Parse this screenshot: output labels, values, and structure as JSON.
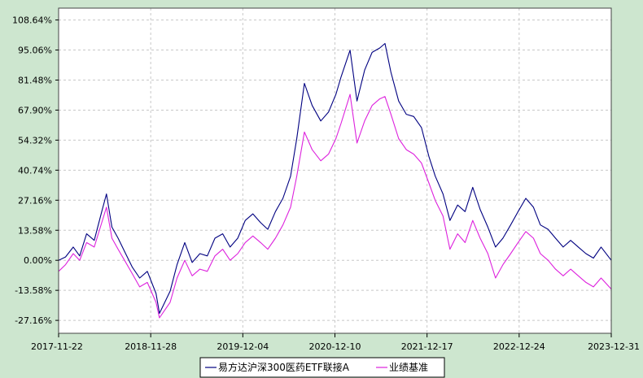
{
  "colors": {
    "page_background": "#cde6cf",
    "plot_background": "#ffffff",
    "grid": "#c8c8c8",
    "fund_line": "#000080",
    "benchmark_line": "#dd22dd"
  },
  "chart_data": {
    "type": "line",
    "title": "",
    "xlabel": "",
    "ylabel": "",
    "ylim": [
      -33.0,
      114.0
    ],
    "y_ticks": [
      108.64,
      95.06,
      81.48,
      67.9,
      54.32,
      40.74,
      27.16,
      13.58,
      0.0,
      -13.58,
      -27.16
    ],
    "y_tick_labels": [
      "108.64%",
      "95.06%",
      "81.48%",
      "67.90%",
      "54.32%",
      "40.74%",
      "27.16%",
      "13.58%",
      "0.00%",
      "-13.58%",
      "-27.16%"
    ],
    "x_tick_labels": [
      "2017-11-22",
      "2018-11-28",
      "2019-12-04",
      "2020-12-10",
      "2021-12-17",
      "2022-12-24",
      "2023-12-31"
    ],
    "x_range": [
      "2017-11-22",
      "2023-12-31"
    ],
    "grid": true,
    "legend_position": "bottom-center",
    "x": [
      "2017-11-22",
      "2017-12-20",
      "2018-01-20",
      "2018-02-15",
      "2018-03-15",
      "2018-04-15",
      "2018-05-15",
      "2018-06-03",
      "2018-06-25",
      "2018-07-20",
      "2018-08-15",
      "2018-09-15",
      "2018-10-15",
      "2018-11-15",
      "2018-12-20",
      "2019-01-03",
      "2019-02-15",
      "2019-03-15",
      "2019-04-15",
      "2019-05-15",
      "2019-06-15",
      "2019-07-15",
      "2019-08-15",
      "2019-09-15",
      "2019-10-15",
      "2019-11-15",
      "2019-12-15",
      "2020-01-15",
      "2020-02-15",
      "2020-03-15",
      "2020-04-15",
      "2020-05-15",
      "2020-06-15",
      "2020-07-10",
      "2020-08-10",
      "2020-09-10",
      "2020-10-15",
      "2020-11-15",
      "2020-12-15",
      "2021-01-05",
      "2021-02-10",
      "2021-03-10",
      "2021-04-10",
      "2021-05-10",
      "2021-06-10",
      "2021-07-01",
      "2021-07-25",
      "2021-08-25",
      "2021-09-25",
      "2021-10-25",
      "2021-11-25",
      "2021-12-25",
      "2022-01-20",
      "2022-02-20",
      "2022-03-20",
      "2022-04-20",
      "2022-05-20",
      "2022-06-20",
      "2022-07-20",
      "2022-08-20",
      "2022-09-20",
      "2022-10-20",
      "2022-11-20",
      "2022-12-20",
      "2023-01-20",
      "2023-02-20",
      "2023-03-20",
      "2023-04-20",
      "2023-05-20",
      "2023-06-20",
      "2023-07-20",
      "2023-08-20",
      "2023-09-20",
      "2023-10-20",
      "2023-11-20",
      "2023-12-31"
    ],
    "series": [
      {
        "name": "易方达沪深300医药ETF联接A",
        "color": "#000080",
        "values": [
          0.0,
          1.5,
          6.0,
          2.0,
          12.0,
          9.0,
          22.0,
          30.0,
          15.0,
          10.0,
          4.0,
          -3.0,
          -8.0,
          -5.0,
          -15.0,
          -24.0,
          -14.0,
          -2.0,
          8.0,
          -1.0,
          3.0,
          2.0,
          10.0,
          12.0,
          6.0,
          10.0,
          18.0,
          21.0,
          17.0,
          14.0,
          22.0,
          28.0,
          38.0,
          55.0,
          80.0,
          70.0,
          63.0,
          67.0,
          75.0,
          83.0,
          95.0,
          72.0,
          86.0,
          94.0,
          96.0,
          98.0,
          85.0,
          72.0,
          66.0,
          65.0,
          60.0,
          47.0,
          38.0,
          30.0,
          18.0,
          25.0,
          22.0,
          33.0,
          23.0,
          15.0,
          6.0,
          10.0,
          16.0,
          22.0,
          28.0,
          24.0,
          16.0,
          14.0,
          10.0,
          6.0,
          9.0,
          6.0,
          3.0,
          1.0,
          6.0,
          0.0
        ]
      },
      {
        "name": "业绩基准",
        "color": "#dd22dd",
        "values": [
          -5.0,
          -2.0,
          3.0,
          0.0,
          8.0,
          6.0,
          17.0,
          24.0,
          10.0,
          5.0,
          0.0,
          -6.0,
          -12.0,
          -10.0,
          -19.0,
          -26.0,
          -19.0,
          -8.0,
          0.0,
          -7.0,
          -4.0,
          -5.0,
          2.0,
          5.0,
          0.0,
          3.0,
          8.0,
          11.0,
          8.0,
          5.0,
          10.0,
          16.0,
          24.0,
          38.0,
          58.0,
          50.0,
          45.0,
          48.0,
          55.0,
          62.0,
          75.0,
          53.0,
          63.0,
          70.0,
          73.0,
          74.0,
          66.0,
          55.0,
          50.0,
          48.0,
          44.0,
          35.0,
          27.0,
          20.0,
          5.0,
          12.0,
          8.0,
          18.0,
          10.0,
          3.0,
          -8.0,
          -2.0,
          3.0,
          8.0,
          13.0,
          10.0,
          3.0,
          0.0,
          -4.0,
          -7.0,
          -4.0,
          -7.0,
          -10.0,
          -12.0,
          -8.0,
          -13.0
        ]
      }
    ]
  }
}
